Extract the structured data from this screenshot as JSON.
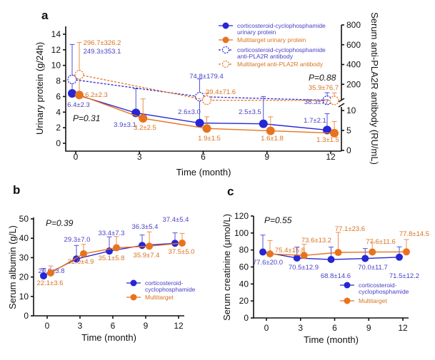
{
  "colors": {
    "blue": "#2626d4",
    "blue_text": "#4a40c4",
    "orange": "#e8731e",
    "orange_text": "#d9731f"
  },
  "chart_data": [
    {
      "panel": "a",
      "type": "line",
      "xlabel": "Time (month)",
      "ylabel": "Urinary protein (g/24h)",
      "y2label": "Serum anti-PLA2R antibody (RU/mL)",
      "x": [
        0,
        3,
        6,
        9,
        12
      ],
      "ylim": [
        0,
        14
      ],
      "yticks": [
        0,
        2,
        4,
        6,
        8,
        10,
        12,
        14
      ],
      "y2ticks": [
        0,
        5,
        10,
        200,
        400,
        600,
        800
      ],
      "y2_axis_break": true,
      "annotations": [
        "P=0.31",
        "P=0.88"
      ],
      "series": [
        {
          "name": "corticosteroid-cyclophosphamide urinary protein",
          "axis": "left",
          "values": [
            6.4,
            3.9,
            2.6,
            2.5,
            1.7
          ],
          "sd": [
            2.3,
            3.1,
            3.0,
            3.5,
            2.1
          ],
          "labels": [
            "6.4±2.3",
            "3.9±3.1",
            "2.6±3.0",
            "2.5±3.5",
            "1.7±2.1"
          ]
        },
        {
          "name": "Multitarget urinary protein",
          "axis": "left",
          "values": [
            6.2,
            3.2,
            1.9,
            1.6,
            1.3
          ],
          "sd": [
            2.3,
            2.5,
            1.5,
            1.8,
            1.5
          ],
          "labels": [
            "6.2±2.3",
            "3.2±2.5",
            "1.9±1.5",
            "1.6±1.8",
            "1.3±1.5"
          ]
        },
        {
          "name": "corticosteroid-cyclophosphamide anti-PLA2R antibody",
          "axis": "right",
          "x": [
            0,
            6,
            12
          ],
          "values": [
            249.3,
            74.8,
            38.3
          ],
          "sd": [
            353.1,
            179.4,
            77.3
          ],
          "labels": [
            "249.3±353.1",
            "74.8±179.4",
            "38.3±77.3"
          ]
        },
        {
          "name": "Multitarget anti-PLA2R antibody",
          "axis": "right",
          "x": [
            0,
            6,
            12
          ],
          "values": [
            296.7,
            39.4,
            35.9
          ],
          "sd": [
            326.2,
            71.6,
            76.7
          ],
          "labels": [
            "296.7±326.2",
            "39.4±71.6",
            "35.9±76.7"
          ]
        }
      ]
    },
    {
      "panel": "b",
      "type": "line",
      "xlabel": "Time (month)",
      "ylabel": "Serum albumin (g/L)",
      "x": [
        0,
        3,
        6,
        9,
        12
      ],
      "ylim": [
        0,
        50
      ],
      "yticks": [
        0,
        10,
        20,
        30,
        40,
        50
      ],
      "annotations": [
        "P=0.39"
      ],
      "series": [
        {
          "name": "corticosteroid-cyclophosphamide",
          "values": [
            20.6,
            29.3,
            33.4,
            36.3,
            37.4
          ],
          "sd": [
            3.8,
            7.0,
            7.3,
            5.4,
            5.4
          ],
          "labels": [
            "20.6±3.8",
            "29.3±7.0",
            "33.4±7.3",
            "36.3±5.4",
            "37.4±5.4"
          ]
        },
        {
          "name": "Multitarget",
          "values": [
            22.1,
            32.0,
            35.1,
            35.9,
            37.5
          ],
          "sd": [
            3.6,
            4.9,
            5.8,
            7.4,
            5.0
          ],
          "labels": [
            "22.1±3.6",
            "32.0±4.9",
            "35.1±5.8",
            "35.9±7.4",
            "37.5±5.0"
          ]
        }
      ]
    },
    {
      "panel": "c",
      "type": "line",
      "xlabel": "Time (month)",
      "ylabel": "Serum creatinine (μmol/L)",
      "x": [
        0,
        3,
        6,
        9,
        12
      ],
      "ylim": [
        0,
        120
      ],
      "yticks": [
        0,
        20,
        40,
        60,
        80,
        100,
        120
      ],
      "annotations": [
        "P=0.55"
      ],
      "series": [
        {
          "name": "corticosteroid-cyclophosphamide",
          "values": [
            77.6,
            70.5,
            68.8,
            70.0,
            71.5
          ],
          "sd": [
            20.0,
            12.9,
            14.6,
            11.7,
            12.2
          ],
          "labels": [
            "77.6±20.0",
            "70.5±12.9",
            "68.8±14.6",
            "70.0±11.7",
            "71.5±12.2"
          ]
        },
        {
          "name": "Multitarget",
          "values": [
            75.4,
            73.6,
            77.1,
            77.6,
            77.8
          ],
          "sd": [
            15.8,
            13.2,
            23.6,
            11.6,
            14.5
          ],
          "labels": [
            "75.4±15.8",
            "73.6±13.2",
            "77.1±23.6",
            "77.6±11.6",
            "77.8±14.5"
          ]
        }
      ]
    }
  ]
}
